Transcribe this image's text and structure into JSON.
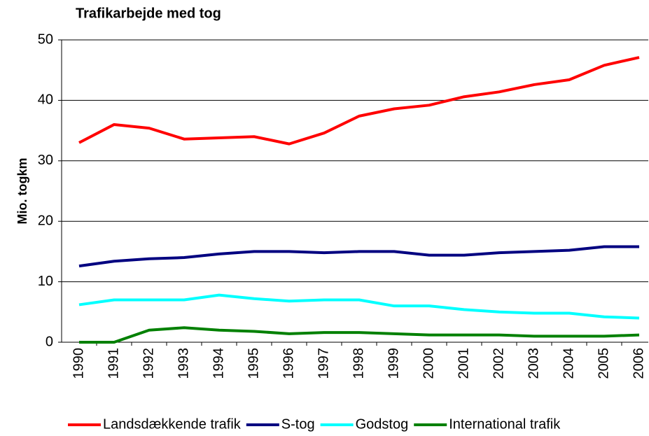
{
  "chart_data": {
    "type": "line",
    "title": "Trafikarbejde med tog",
    "y_label": "Mio. togkm",
    "categories": [
      "1990",
      "1991",
      "1992",
      "1993",
      "1994",
      "1995",
      "1996",
      "1997",
      "1998",
      "1999",
      "2000",
      "2001",
      "2002",
      "2003",
      "2004",
      "2005",
      "2006"
    ],
    "series": [
      {
        "name": "Landsdækkende trafik",
        "color": "#ff0000",
        "values": [
          33.0,
          36.0,
          35.4,
          33.6,
          33.8,
          34.0,
          32.8,
          34.6,
          37.4,
          38.6,
          39.2,
          40.6,
          41.4,
          42.6,
          43.4,
          45.8,
          47.1
        ]
      },
      {
        "name": "S-tog",
        "color": "#000080",
        "values": [
          12.6,
          13.4,
          13.8,
          14.0,
          14.6,
          15.0,
          15.0,
          14.8,
          15.0,
          15.0,
          14.4,
          14.4,
          14.8,
          15.0,
          15.2,
          15.8,
          15.8
        ]
      },
      {
        "name": "Godstog",
        "color": "#00ffff",
        "values": [
          6.2,
          7.0,
          7.0,
          7.0,
          7.8,
          7.2,
          6.8,
          7.0,
          7.0,
          6.0,
          6.0,
          5.4,
          5.0,
          4.8,
          4.8,
          4.2,
          4.0
        ]
      },
      {
        "name": "International trafik",
        "color": "#008000",
        "values": [
          0,
          0,
          2.0,
          2.4,
          2.0,
          1.8,
          1.4,
          1.6,
          1.6,
          1.4,
          1.2,
          1.2,
          1.2,
          1.0,
          1.0,
          1.0,
          1.2
        ]
      }
    ],
    "ylim": [
      0,
      50
    ],
    "yticks": [
      0,
      10,
      20,
      30,
      40,
      50
    ],
    "grid": true,
    "legend": "bottom"
  }
}
